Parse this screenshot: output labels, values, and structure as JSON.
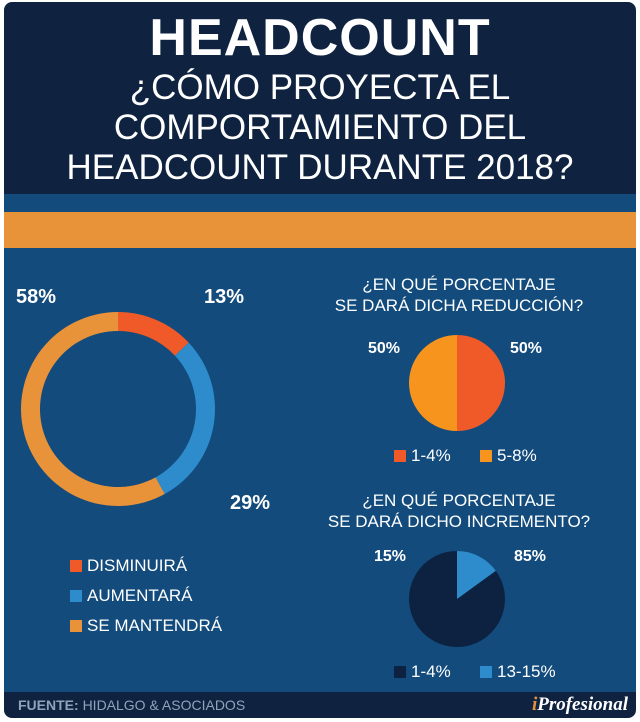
{
  "header": {
    "title": "HEADCOUNT",
    "subtitle_lines": [
      "¿CÓMO PROYECTA EL",
      "COMPORTAMIENTO DEL",
      "HEADCOUNT DURANTE 2018?"
    ]
  },
  "chart_data": [
    {
      "type": "pie",
      "name": "donut",
      "values": [
        13,
        29,
        58
      ],
      "labels": [
        "13%",
        "29%",
        "58%"
      ],
      "legend": [
        "DISMINUIRÁ",
        "AUMENTARÁ",
        "SE MANTENDRÁ"
      ],
      "colors": [
        "#ef5a28",
        "#2e8bcc",
        "#e8923a"
      ]
    },
    {
      "type": "pie",
      "title": "¿EN QUÉ PORCENTAJE SE DARÁ DICHA REDUCCIÓN?",
      "title_lines": [
        "¿EN QUÉ PORCENTAJE",
        "SE DARÁ DICHA REDUCCIÓN?"
      ],
      "values": [
        50,
        50
      ],
      "labels": [
        "50%",
        "50%"
      ],
      "legend": [
        "1-4%",
        "5-8%"
      ],
      "colors": [
        "#ef5a28",
        "#f7941d"
      ]
    },
    {
      "type": "pie",
      "title": "¿EN QUÉ PORCENTAJE SE DARÁ DICHO INCREMENTO?",
      "title_lines": [
        "¿EN QUÉ PORCENTAJE",
        "SE DARÁ DICHO INCREMENTO?"
      ],
      "values": [
        85,
        15
      ],
      "labels": [
        "85%",
        "15%"
      ],
      "legend": [
        "1-4%",
        "13-15%"
      ],
      "colors": [
        "#0d2240",
        "#2e8bcc"
      ]
    }
  ],
  "footer": {
    "source_label": "FUENTE:",
    "source": "HIDALGO & ASOCIADOS",
    "brand_i": "i",
    "brand": "Profesional"
  }
}
